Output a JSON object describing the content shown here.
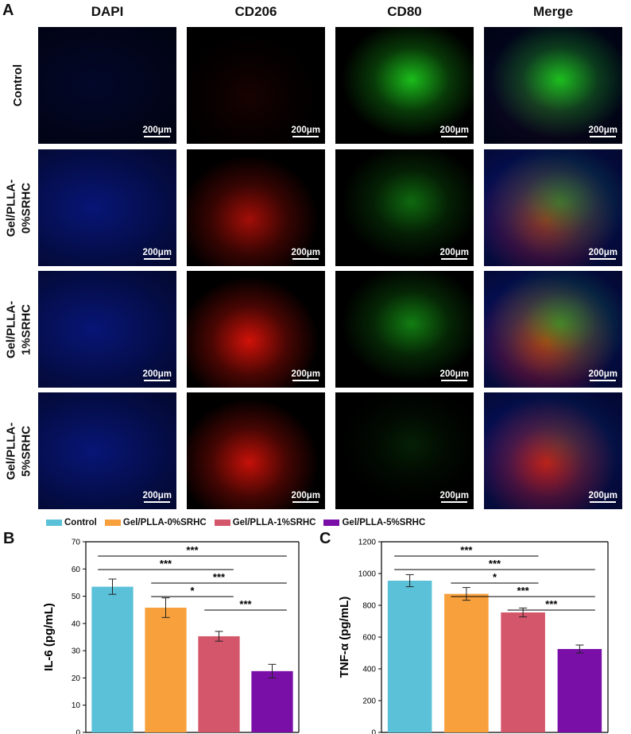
{
  "panel_letters": {
    "a": "A",
    "b": "B",
    "c": "C"
  },
  "micrograph": {
    "columns": [
      "DAPI",
      "CD206",
      "CD80",
      "Merge"
    ],
    "rows": [
      "Control",
      "Gel/PLLA-\n0%SRHC",
      "Gel/PLLA-\n1%SRHC",
      "Gel/PLLA-\n5%SRHC"
    ],
    "scale_bar": "200μm",
    "channel_colors": {
      "dapi": "#0a1ea8",
      "cd206": "#e8140a",
      "cd80": "#1ed21e"
    },
    "signal_levels": {
      "cd206": [
        0.1,
        0.7,
        0.9,
        0.85
      ],
      "cd80": [
        0.9,
        0.5,
        0.6,
        0.15
      ]
    }
  },
  "legend": [
    {
      "label": "Control",
      "color": "#5bc1d8"
    },
    {
      "label": "Gel/PLLA-0%SRHC",
      "color": "#f8a03c"
    },
    {
      "label": "Gel/PLLA-1%SRHC",
      "color": "#d4566b"
    },
    {
      "label": "Gel/PLLA-5%SRHC",
      "color": "#7a0fa8"
    }
  ],
  "chart_data": [
    {
      "type": "bar",
      "panel": "B",
      "categories": [
        "Control",
        "Gel/PLLA-0%SRHC",
        "Gel/PLLA-1%SRHC",
        "Gel/PLLA-5%SRHC"
      ],
      "values": [
        53.5,
        45.8,
        35.3,
        22.5
      ],
      "errors": [
        2.8,
        3.6,
        1.8,
        2.5
      ],
      "ylabel": "IL-6 (pg/mL)",
      "ylim": [
        0,
        70
      ],
      "yticks": [
        0,
        10,
        20,
        30,
        40,
        50,
        60,
        70
      ],
      "significance": [
        {
          "from": 0,
          "to": 3,
          "label": "***"
        },
        {
          "from": 0,
          "to": 2,
          "label": "***"
        },
        {
          "from": 1,
          "to": 3,
          "label": "***"
        },
        {
          "from": 1,
          "to": 2,
          "label": "*"
        },
        {
          "from": 2,
          "to": 3,
          "label": "***"
        }
      ]
    },
    {
      "type": "bar",
      "panel": "C",
      "categories": [
        "Control",
        "Gel/PLLA-0%SRHC",
        "Gel/PLLA-1%SRHC",
        "Gel/PLLA-5%SRHC"
      ],
      "values": [
        955,
        872,
        755,
        525
      ],
      "errors": [
        38,
        40,
        28,
        25
      ],
      "ylabel": "TNF-α (pg/mL)",
      "ylim": [
        0,
        1200
      ],
      "yticks": [
        0,
        200,
        400,
        600,
        800,
        1000,
        1200
      ],
      "significance": [
        {
          "from": 0,
          "to": 2,
          "label": "***"
        },
        {
          "from": 0,
          "to": 3,
          "label": "***"
        },
        {
          "from": 1,
          "to": 2,
          "label": "*"
        },
        {
          "from": 1,
          "to": 3,
          "label": "***"
        },
        {
          "from": 2,
          "to": 3,
          "label": "***"
        }
      ]
    }
  ]
}
